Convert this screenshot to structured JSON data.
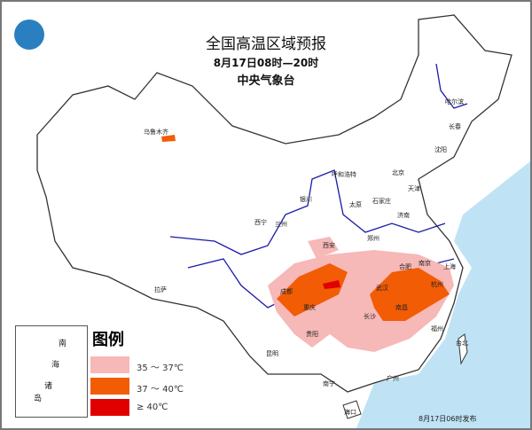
{
  "title": "全国高温区域预报",
  "time_range": "8月17日08时—20时",
  "issuer": "中央气象台",
  "issued_at": "8月17日06时发布",
  "legend": {
    "title": "图例",
    "items": [
      {
        "label": "35 ～ 37℃",
        "color": "#f7b8b8"
      },
      {
        "label": "37 ～ 40℃",
        "color": "#f25c05"
      },
      {
        "label": "≥ 40℃",
        "color": "#e00000"
      }
    ]
  },
  "inset": {
    "label_chars": [
      "南",
      "海",
      "诸",
      "岛"
    ]
  },
  "colors": {
    "sea": "#bfe3f5",
    "river": "#1a1aa8",
    "land": "#ffffff"
  },
  "cities": [
    "乌鲁木齐",
    "哈尔滨",
    "长春",
    "沈阳",
    "呼和浩特",
    "北京",
    "天津",
    "银川",
    "太原",
    "石家庄",
    "济南",
    "西宁",
    "兰州",
    "郑州",
    "西安",
    "合肥",
    "南京",
    "上海",
    "拉萨",
    "成都",
    "重庆",
    "武汉",
    "杭州",
    "长沙",
    "南昌",
    "福州",
    "贵阳",
    "昆明",
    "南宁",
    "广州",
    "台北",
    "海口"
  ]
}
